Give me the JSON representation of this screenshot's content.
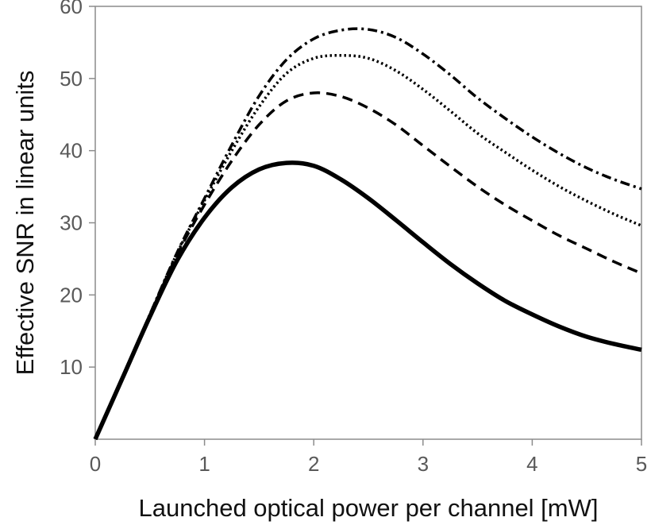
{
  "chart_data": {
    "type": "line",
    "title": "",
    "xlabel": "Launched optical power per channel [mW]",
    "ylabel": "Effective SNR in linear units",
    "xlim": [
      0,
      5
    ],
    "ylim": [
      0,
      60
    ],
    "xticks": [
      0,
      1,
      2,
      3,
      4,
      5
    ],
    "yticks": [
      10,
      20,
      30,
      40,
      50,
      60
    ],
    "xtick_labels": [
      "0",
      "1",
      "2",
      "3",
      "4",
      "5"
    ],
    "ytick_labels": [
      "10",
      "20",
      "30",
      "40",
      "50",
      "60"
    ],
    "grid": false,
    "legend": "none",
    "x": [
      0,
      0.25,
      0.5,
      0.75,
      1.0,
      1.25,
      1.5,
      1.75,
      2.0,
      2.25,
      2.5,
      2.75,
      3.0,
      3.25,
      3.5,
      3.75,
      4.0,
      4.25,
      4.5,
      4.75,
      5.0
    ],
    "series": [
      {
        "style": "solid",
        "color": "#000000",
        "values": [
          0,
          8.5,
          17.0,
          24.8,
          30.7,
          34.9,
          37.4,
          38.3,
          37.9,
          36.0,
          33.4,
          30.4,
          27.3,
          24.3,
          21.6,
          19.2,
          17.3,
          15.6,
          14.2,
          13.2,
          12.4
        ]
      },
      {
        "style": "dashed",
        "color": "#000000",
        "values": [
          0,
          8.5,
          17.2,
          25.6,
          32.5,
          38.6,
          43.6,
          46.9,
          48.0,
          47.5,
          45.9,
          43.6,
          40.7,
          37.8,
          35.0,
          32.5,
          30.3,
          28.2,
          26.4,
          24.6,
          23.0
        ]
      },
      {
        "style": "dotted",
        "color": "#000000",
        "values": [
          0,
          8.5,
          17.3,
          25.8,
          33.1,
          40.0,
          46.1,
          50.7,
          52.8,
          53.2,
          52.8,
          51.1,
          48.5,
          45.5,
          42.4,
          39.8,
          37.3,
          35.0,
          33.0,
          31.2,
          29.6
        ]
      },
      {
        "style": "dash-dot",
        "color": "#000000",
        "values": [
          0,
          8.5,
          17.3,
          25.9,
          33.4,
          40.8,
          47.6,
          52.6,
          55.5,
          56.7,
          56.8,
          55.7,
          53.4,
          50.5,
          47.3,
          44.5,
          41.9,
          39.6,
          37.6,
          36.0,
          34.7
        ]
      }
    ]
  }
}
